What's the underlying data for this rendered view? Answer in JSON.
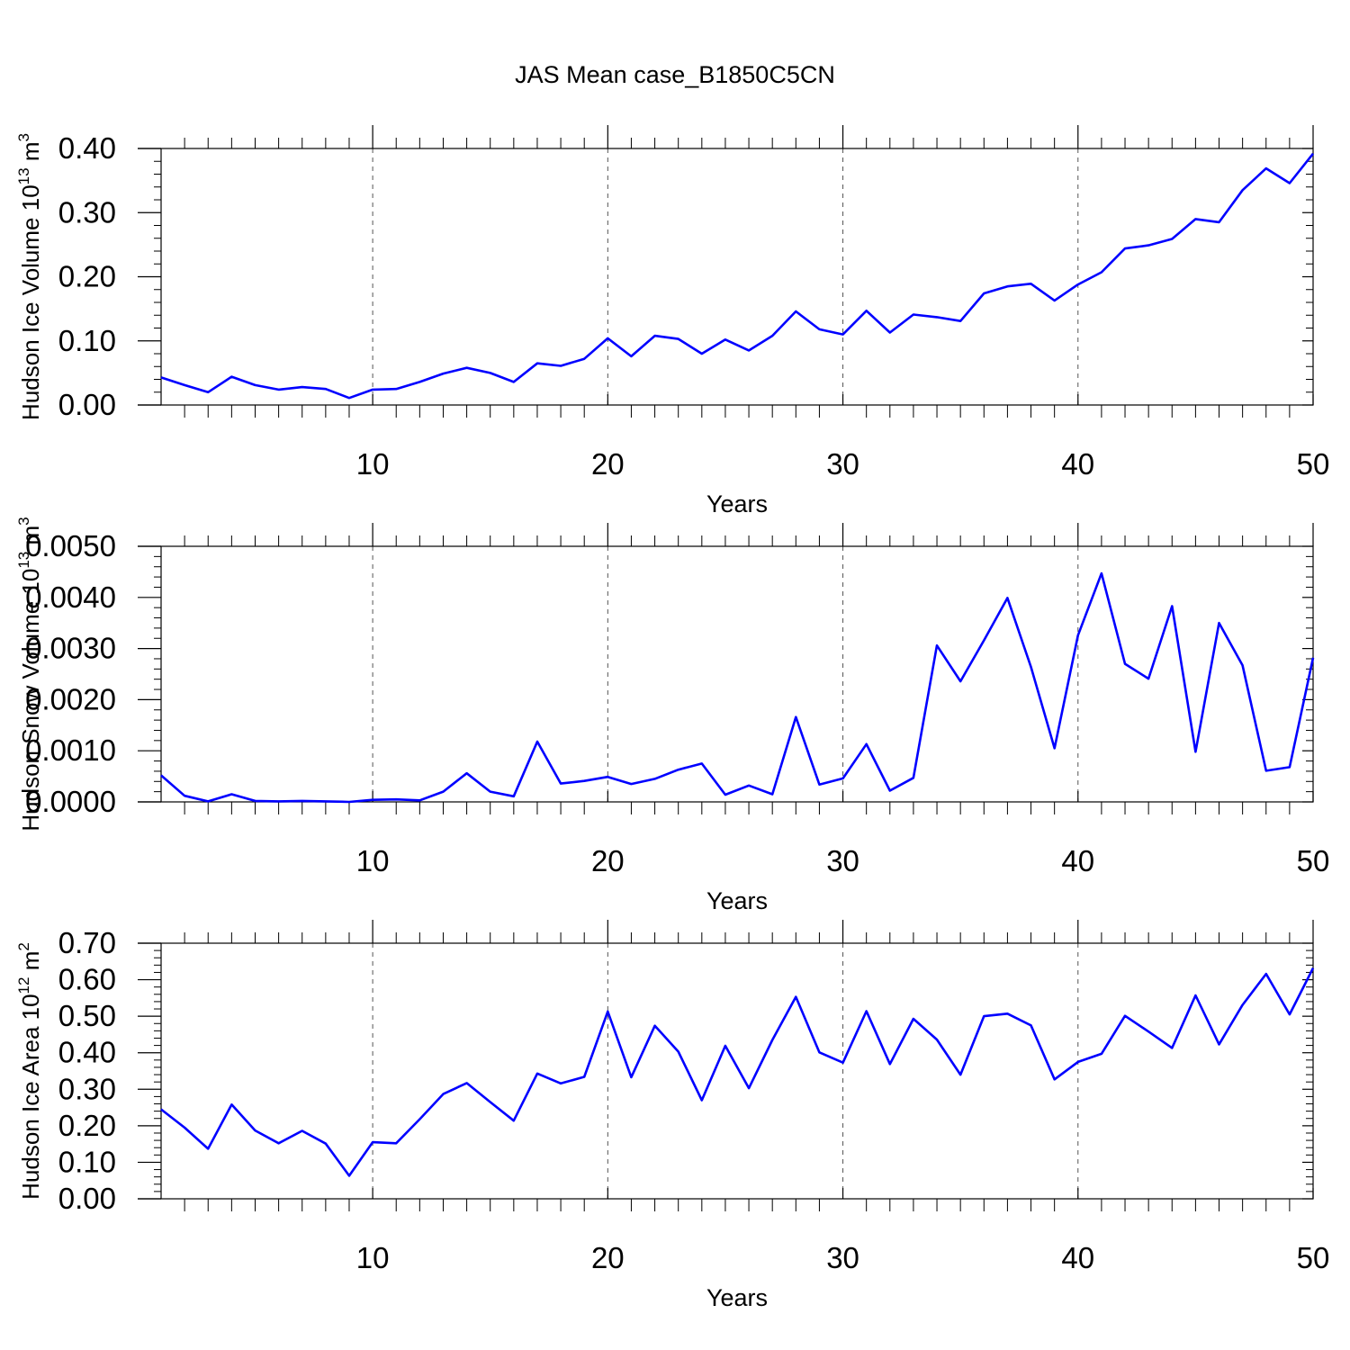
{
  "page_title": "JAS Mean case_B1850C5CN",
  "chart_data": [
    {
      "type": "line",
      "ylabel": {
        "text": "Hudson Ice Volume 10",
        "sup": "13",
        "unit": " m",
        "unit_sup": "3"
      },
      "xlabel": "Years",
      "xlim": [
        1,
        50
      ],
      "ylim": [
        0,
        0.4
      ],
      "x_ticks": [
        10,
        20,
        30,
        40,
        50
      ],
      "y_ticks": [
        0.0,
        0.1,
        0.2,
        0.3,
        0.4
      ],
      "y_tick_labels": [
        "0.00",
        "0.10",
        "0.20",
        "0.30",
        "0.40"
      ],
      "grid": "vertical dashed at major x ticks",
      "line_color": "#0000ff",
      "x": [
        1,
        2,
        3,
        4,
        5,
        6,
        7,
        8,
        9,
        10,
        11,
        12,
        13,
        14,
        15,
        16,
        17,
        18,
        19,
        20,
        21,
        22,
        23,
        24,
        25,
        26,
        27,
        28,
        29,
        30,
        31,
        32,
        33,
        34,
        35,
        36,
        37,
        38,
        39,
        40,
        41,
        42,
        43,
        44,
        45,
        46,
        47,
        48,
        49,
        50
      ],
      "values": [
        0.043,
        0.031,
        0.02,
        0.044,
        0.031,
        0.024,
        0.028,
        0.025,
        0.011,
        0.024,
        0.025,
        0.036,
        0.049,
        0.058,
        0.05,
        0.036,
        0.065,
        0.061,
        0.072,
        0.104,
        0.076,
        0.108,
        0.103,
        0.08,
        0.102,
        0.085,
        0.108,
        0.146,
        0.118,
        0.11,
        0.147,
        0.113,
        0.141,
        0.137,
        0.131,
        0.174,
        0.185,
        0.189,
        0.163,
        0.188,
        0.207,
        0.244,
        0.249,
        0.259,
        0.29,
        0.285,
        0.335,
        0.369,
        0.346,
        0.392
      ]
    },
    {
      "type": "line",
      "ylabel": {
        "text": "Hudson Snow Volume 10",
        "sup": "13",
        "unit": " m",
        "unit_sup": "3"
      },
      "xlabel": "Years",
      "xlim": [
        1,
        50
      ],
      "ylim": [
        0,
        0.005
      ],
      "x_ticks": [
        10,
        20,
        30,
        40,
        50
      ],
      "y_ticks": [
        0.0,
        0.001,
        0.002,
        0.003,
        0.004,
        0.005
      ],
      "y_tick_labels": [
        "0.0000",
        "0.0010",
        "0.0020",
        "0.0030",
        "0.0040",
        "0.0050"
      ],
      "grid": "vertical dashed at major x ticks",
      "line_color": "#0000ff",
      "x": [
        1,
        2,
        3,
        4,
        5,
        6,
        7,
        8,
        9,
        10,
        11,
        12,
        13,
        14,
        15,
        16,
        17,
        18,
        19,
        20,
        21,
        22,
        23,
        24,
        25,
        26,
        27,
        28,
        29,
        30,
        31,
        32,
        33,
        34,
        35,
        36,
        37,
        38,
        39,
        40,
        41,
        42,
        43,
        44,
        45,
        46,
        47,
        48,
        49,
        50
      ],
      "values": [
        0.00052,
        0.00012,
        1e-05,
        0.00015,
        2e-05,
        1e-05,
        2e-05,
        1e-05,
        0.0,
        4e-05,
        5e-05,
        3e-05,
        0.0002,
        0.00056,
        0.0002,
        0.00011,
        0.00118,
        0.00036,
        0.00041,
        0.00049,
        0.00035,
        0.00045,
        0.00063,
        0.00075,
        0.00014,
        0.00032,
        0.00015,
        0.00166,
        0.00034,
        0.00046,
        0.00113,
        0.00022,
        0.00047,
        0.00306,
        0.00236,
        0.00316,
        0.00399,
        0.00264,
        0.00105,
        0.00326,
        0.00447,
        0.0027,
        0.00241,
        0.00383,
        0.00098,
        0.0035,
        0.00267,
        0.00061,
        0.00068,
        0.00282
      ]
    },
    {
      "type": "line",
      "ylabel": {
        "text": "Hudson Ice Area 10",
        "sup": "12",
        "unit": " m",
        "unit_sup": "2"
      },
      "xlabel": "Years",
      "xlim": [
        1,
        50
      ],
      "ylim": [
        0,
        0.7
      ],
      "x_ticks": [
        10,
        20,
        30,
        40,
        50
      ],
      "y_ticks": [
        0.0,
        0.1,
        0.2,
        0.3,
        0.4,
        0.5,
        0.6,
        0.7
      ],
      "y_tick_labels": [
        "0.00",
        "0.10",
        "0.20",
        "0.30",
        "0.40",
        "0.50",
        "0.60",
        "0.70"
      ],
      "grid": "vertical dashed at major x ticks",
      "line_color": "#0000ff",
      "x": [
        1,
        2,
        3,
        4,
        5,
        6,
        7,
        8,
        9,
        10,
        11,
        12,
        13,
        14,
        15,
        16,
        17,
        18,
        19,
        20,
        21,
        22,
        23,
        24,
        25,
        26,
        27,
        28,
        29,
        30,
        31,
        32,
        33,
        34,
        35,
        36,
        37,
        38,
        39,
        40,
        41,
        42,
        43,
        44,
        45,
        46,
        47,
        48,
        49,
        50
      ],
      "values": [
        0.245,
        0.195,
        0.137,
        0.258,
        0.187,
        0.152,
        0.186,
        0.151,
        0.063,
        0.155,
        0.152,
        0.218,
        0.287,
        0.317,
        0.265,
        0.214,
        0.343,
        0.316,
        0.334,
        0.513,
        0.333,
        0.474,
        0.403,
        0.27,
        0.419,
        0.303,
        0.435,
        0.553,
        0.401,
        0.373,
        0.514,
        0.369,
        0.493,
        0.436,
        0.34,
        0.5,
        0.507,
        0.475,
        0.327,
        0.375,
        0.397,
        0.501,
        0.458,
        0.413,
        0.557,
        0.423,
        0.531,
        0.616,
        0.505,
        0.632
      ]
    }
  ]
}
